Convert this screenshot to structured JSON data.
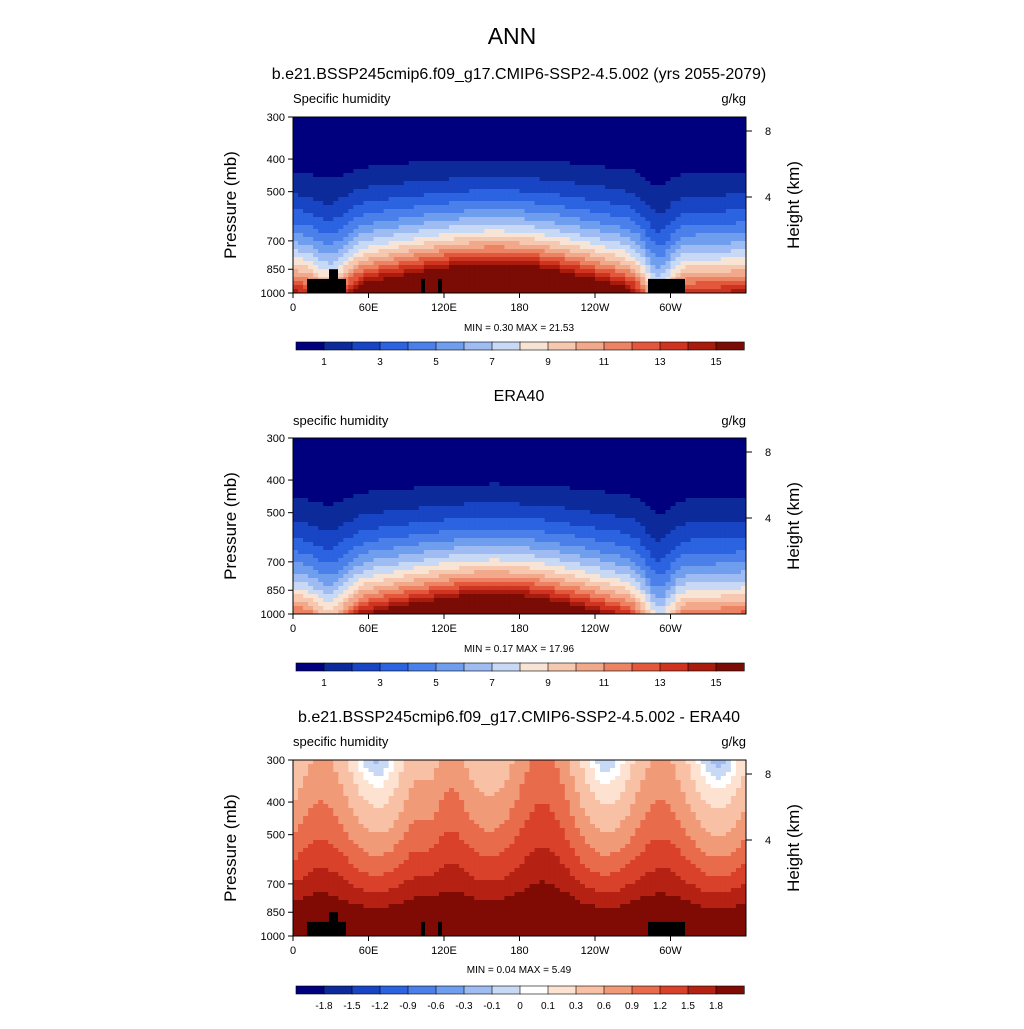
{
  "page_title": "ANN",
  "colors": {
    "abs_palette": [
      "#00007f",
      "#0c2a9a",
      "#1845c4",
      "#2b63e0",
      "#4b80ea",
      "#6f9eef",
      "#9ebbf2",
      "#c8d9f6",
      "#f7e4d5",
      "#f6c8b0",
      "#f2a88a",
      "#ec8464",
      "#e3583c",
      "#cf3421",
      "#a81b0d",
      "#7a0b05"
    ],
    "diff_palette": [
      "#00007f",
      "#0c2a9a",
      "#1845c4",
      "#2b63e0",
      "#4b80ea",
      "#6f9eef",
      "#9ebbf2",
      "#c8d9f6",
      "#ffffff",
      "#fde2d2",
      "#f8c0a4",
      "#f19a78",
      "#e86c4c",
      "#d9412a",
      "#b52112",
      "#800a04"
    ],
    "land_mask": "#000000"
  },
  "chart_data": [
    {
      "type": "heatmap",
      "title": "b.e21.BSSP245cmip6.f09_g17.CMIP6-SSP2-4.5.002 (yrs 2055-2079)",
      "left_label": "Specific humidity",
      "units": "g/kg",
      "ylabel": "Pressure (mb)",
      "ylabel_right": "Height (km)",
      "x_ticks": [
        "0",
        "60E",
        "120E",
        "180",
        "120W",
        "60W"
      ],
      "y_ticks": [
        "300",
        "400",
        "500",
        "700",
        "850",
        "1000"
      ],
      "y_ticks_right": [
        "8",
        "4"
      ],
      "ylim": [
        1000,
        300
      ],
      "xlim": [
        0,
        360
      ],
      "stats": "MIN =   0.30  MAX =  21.53",
      "min": 0.3,
      "max": 21.53,
      "colorbar_labels": [
        "1",
        "3",
        "5",
        "7",
        "9",
        "11",
        "13",
        "15"
      ],
      "colorbar_levels": [
        0,
        1,
        2,
        3,
        4,
        5,
        6,
        7,
        8,
        9,
        10,
        11,
        12,
        13,
        14,
        15
      ],
      "scale": "abs"
    },
    {
      "type": "heatmap",
      "title": "ERA40",
      "left_label": "specific humidity",
      "units": "g/kg",
      "ylabel": "Pressure (mb)",
      "ylabel_right": "Height (km)",
      "x_ticks": [
        "0",
        "60E",
        "120E",
        "180",
        "120W",
        "60W"
      ],
      "y_ticks": [
        "300",
        "400",
        "500",
        "700",
        "850",
        "1000"
      ],
      "y_ticks_right": [
        "8",
        "4"
      ],
      "ylim": [
        1000,
        300
      ],
      "xlim": [
        0,
        360
      ],
      "stats": "MIN =   0.17  MAX =  17.96",
      "min": 0.17,
      "max": 17.96,
      "colorbar_labels": [
        "1",
        "3",
        "5",
        "7",
        "9",
        "11",
        "13",
        "15"
      ],
      "colorbar_levels": [
        0,
        1,
        2,
        3,
        4,
        5,
        6,
        7,
        8,
        9,
        10,
        11,
        12,
        13,
        14,
        15
      ],
      "scale": "abs"
    },
    {
      "type": "heatmap",
      "title": "b.e21.BSSP245cmip6.f09_g17.CMIP6-SSP2-4.5.002 - ERA40",
      "left_label": "specific humidity",
      "units": "g/kg",
      "ylabel": "Pressure (mb)",
      "ylabel_right": "Height (km)",
      "x_ticks": [
        "0",
        "60E",
        "120E",
        "180",
        "120W",
        "60W"
      ],
      "y_ticks": [
        "300",
        "400",
        "500",
        "700",
        "850",
        "1000"
      ],
      "y_ticks_right": [
        "8",
        "4"
      ],
      "ylim": [
        1000,
        300
      ],
      "xlim": [
        0,
        360
      ],
      "stats": "MIN =   0.04  MAX =   5.49",
      "min": 0.04,
      "max": 5.49,
      "colorbar_labels": [
        "-1.8",
        "-1.5",
        "-1.2",
        "-0.9",
        "-0.6",
        "-0.3",
        "-0.1",
        "0",
        "0.1",
        "0.3",
        "0.6",
        "0.9",
        "1.2",
        "1.5",
        "1.8"
      ],
      "colorbar_levels": [
        -1.8,
        -1.5,
        -1.2,
        -0.9,
        -0.6,
        -0.3,
        -0.1,
        0,
        0.1,
        0.3,
        0.6,
        0.9,
        1.2,
        1.5,
        1.8
      ],
      "scale": "diff"
    }
  ]
}
